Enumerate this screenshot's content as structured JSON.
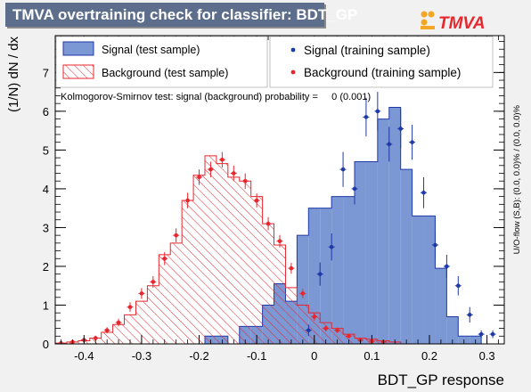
{
  "title": "TMVA overtraining check for classifier: BDT_GP",
  "logo": {
    "text": "TMVA",
    "dot_colors": [
      "#f5a623",
      "#f5a623",
      "#f5a623"
    ],
    "accent": "#e8262d"
  },
  "overflow_note": "U/O-flow (S,B): (0.0, 0.0)% / (0.0, 0.0)%",
  "ks_text": "Kolmogorov-Smirnov test: signal (background) probability =     0 (0.001)",
  "legend": {
    "signal_test": "Signal (test sample)",
    "background_test": "Background (test sample)",
    "signal_train": "Signal (training sample)",
    "background_train": "Background (training sample)"
  },
  "colors": {
    "signal_fill": "#7b97d4",
    "signal_line": "#1f3aa8",
    "background": "#e8262d",
    "frame_bg": "#ffffff"
  },
  "chart_data": {
    "type": "bar",
    "title": "TMVA overtraining check for classifier: BDT_GP",
    "xlabel": "BDT_GP response",
    "ylabel": "(1/N) dN / dx",
    "xlim": [
      -0.45,
      0.33
    ],
    "ylim": [
      0,
      7.95
    ],
    "xticks": [
      -0.4,
      -0.3,
      -0.2,
      -0.1,
      0,
      0.1,
      0.2,
      0.3
    ],
    "xtick_labels": [
      "-0.4",
      "-0.3",
      "-0.2",
      "-0.1",
      "0",
      "0.1",
      "0.2",
      "0.3"
    ],
    "yticks": [
      0,
      1,
      2,
      3,
      4,
      5,
      6,
      7
    ],
    "ytick_labels": [
      "0",
      "1",
      "2",
      "3",
      "4",
      "5",
      "6",
      "7"
    ],
    "bin_edges": [
      -0.45,
      -0.43,
      -0.41,
      -0.39,
      -0.37,
      -0.35,
      -0.33,
      -0.31,
      -0.29,
      -0.27,
      -0.25,
      -0.23,
      -0.21,
      -0.19,
      -0.17,
      -0.15,
      -0.13,
      -0.11,
      -0.09,
      -0.07,
      -0.05,
      -0.03,
      -0.01,
      0.01,
      0.03,
      0.05,
      0.07,
      0.09,
      0.11,
      0.13,
      0.15,
      0.17,
      0.19,
      0.21,
      0.23,
      0.25,
      0.27,
      0.29,
      0.31,
      0.33
    ],
    "series": [
      {
        "name": "Signal (test sample)",
        "style": "filled-histogram",
        "values": [
          0,
          0,
          0,
          0,
          0,
          0,
          0,
          0,
          0,
          0,
          0,
          0,
          0,
          0.2,
          0.2,
          0,
          0.45,
          0.45,
          1.0,
          1.55,
          1.1,
          2.8,
          3.5,
          3.5,
          3.8,
          3.8,
          4.7,
          4.7,
          5.8,
          6.1,
          4.5,
          3.3,
          3.3,
          1.95,
          0.7,
          0.2,
          0.2,
          0,
          0
        ]
      },
      {
        "name": "Background (test sample)",
        "style": "hatched-histogram",
        "values": [
          0.02,
          0.05,
          0.08,
          0.15,
          0.3,
          0.5,
          0.75,
          1.1,
          1.5,
          2.3,
          2.6,
          3.7,
          4.35,
          4.85,
          4.65,
          4.3,
          4.2,
          3.8,
          3.1,
          2.55,
          1.45,
          1.0,
          0.8,
          0.55,
          0.4,
          0.25,
          0.15,
          0.12,
          0.08,
          0.05,
          0,
          0,
          0,
          0,
          0,
          0,
          0,
          0,
          0
        ]
      },
      {
        "name": "Signal (training sample)",
        "style": "markers",
        "x": [
          -0.01,
          0.01,
          0.03,
          0.05,
          0.07,
          0.09,
          0.11,
          0.13,
          0.15,
          0.17,
          0.19,
          0.21,
          0.23,
          0.25,
          0.27,
          0.29,
          0.31
        ],
        "values": [
          0.35,
          1.8,
          2.5,
          4.5,
          4.0,
          5.85,
          6.0,
          5.15,
          5.55,
          5.2,
          3.9,
          2.55,
          2.0,
          1.5,
          0.75,
          0.25,
          0.25
        ],
        "errors": [
          0.15,
          0.3,
          0.35,
          0.45,
          0.4,
          0.5,
          0.5,
          0.45,
          0.5,
          0.45,
          0.4,
          0.35,
          0.3,
          0.25,
          0.2,
          0.1,
          0.1
        ]
      },
      {
        "name": "Background (training sample)",
        "style": "markers",
        "x": [
          -0.44,
          -0.42,
          -0.4,
          -0.38,
          -0.36,
          -0.34,
          -0.32,
          -0.3,
          -0.28,
          -0.26,
          -0.24,
          -0.22,
          -0.2,
          -0.18,
          -0.16,
          -0.14,
          -0.12,
          -0.1,
          -0.08,
          -0.06,
          -0.04,
          -0.02,
          0.0,
          0.02,
          0.04,
          0.06,
          0.08,
          0.1,
          0.12
        ],
        "values": [
          0.02,
          0.05,
          0.1,
          0.15,
          0.35,
          0.55,
          0.95,
          1.3,
          1.6,
          2.2,
          2.8,
          3.7,
          4.3,
          4.5,
          4.75,
          4.4,
          4.2,
          3.7,
          3.1,
          2.65,
          1.95,
          1.3,
          0.7,
          0.4,
          0.35,
          0.2,
          0.1,
          0.07,
          0.05
        ],
        "errors": [
          0.02,
          0.03,
          0.05,
          0.06,
          0.08,
          0.1,
          0.12,
          0.14,
          0.15,
          0.17,
          0.18,
          0.2,
          0.2,
          0.2,
          0.2,
          0.2,
          0.2,
          0.18,
          0.17,
          0.16,
          0.14,
          0.12,
          0.1,
          0.08,
          0.07,
          0.05,
          0.04,
          0.03,
          0.03
        ]
      }
    ],
    "grid": false,
    "legend_position": "top"
  }
}
